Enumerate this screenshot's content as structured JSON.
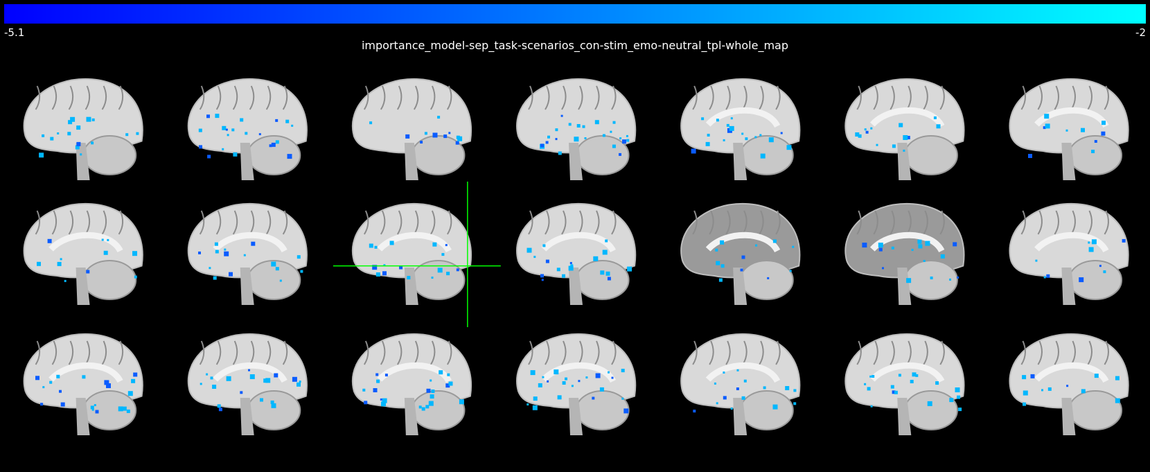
{
  "title": "importance_model-sep_task-scenarios_con-stim_emo-neutral_tpl-whole_map",
  "colorbar": {
    "min_label": "-5.1",
    "max_label": "-2",
    "color_low": "#0000ff",
    "color_high": "#00ffff"
  },
  "figure": {
    "rows": 3,
    "cols": 7,
    "view": "sagittal",
    "brain_color": "#d9d9d9",
    "overlay_color": "#00b7ff",
    "crosshair_color": "#00ff00",
    "crosshair_panel": {
      "row": 1,
      "col": 2
    }
  }
}
